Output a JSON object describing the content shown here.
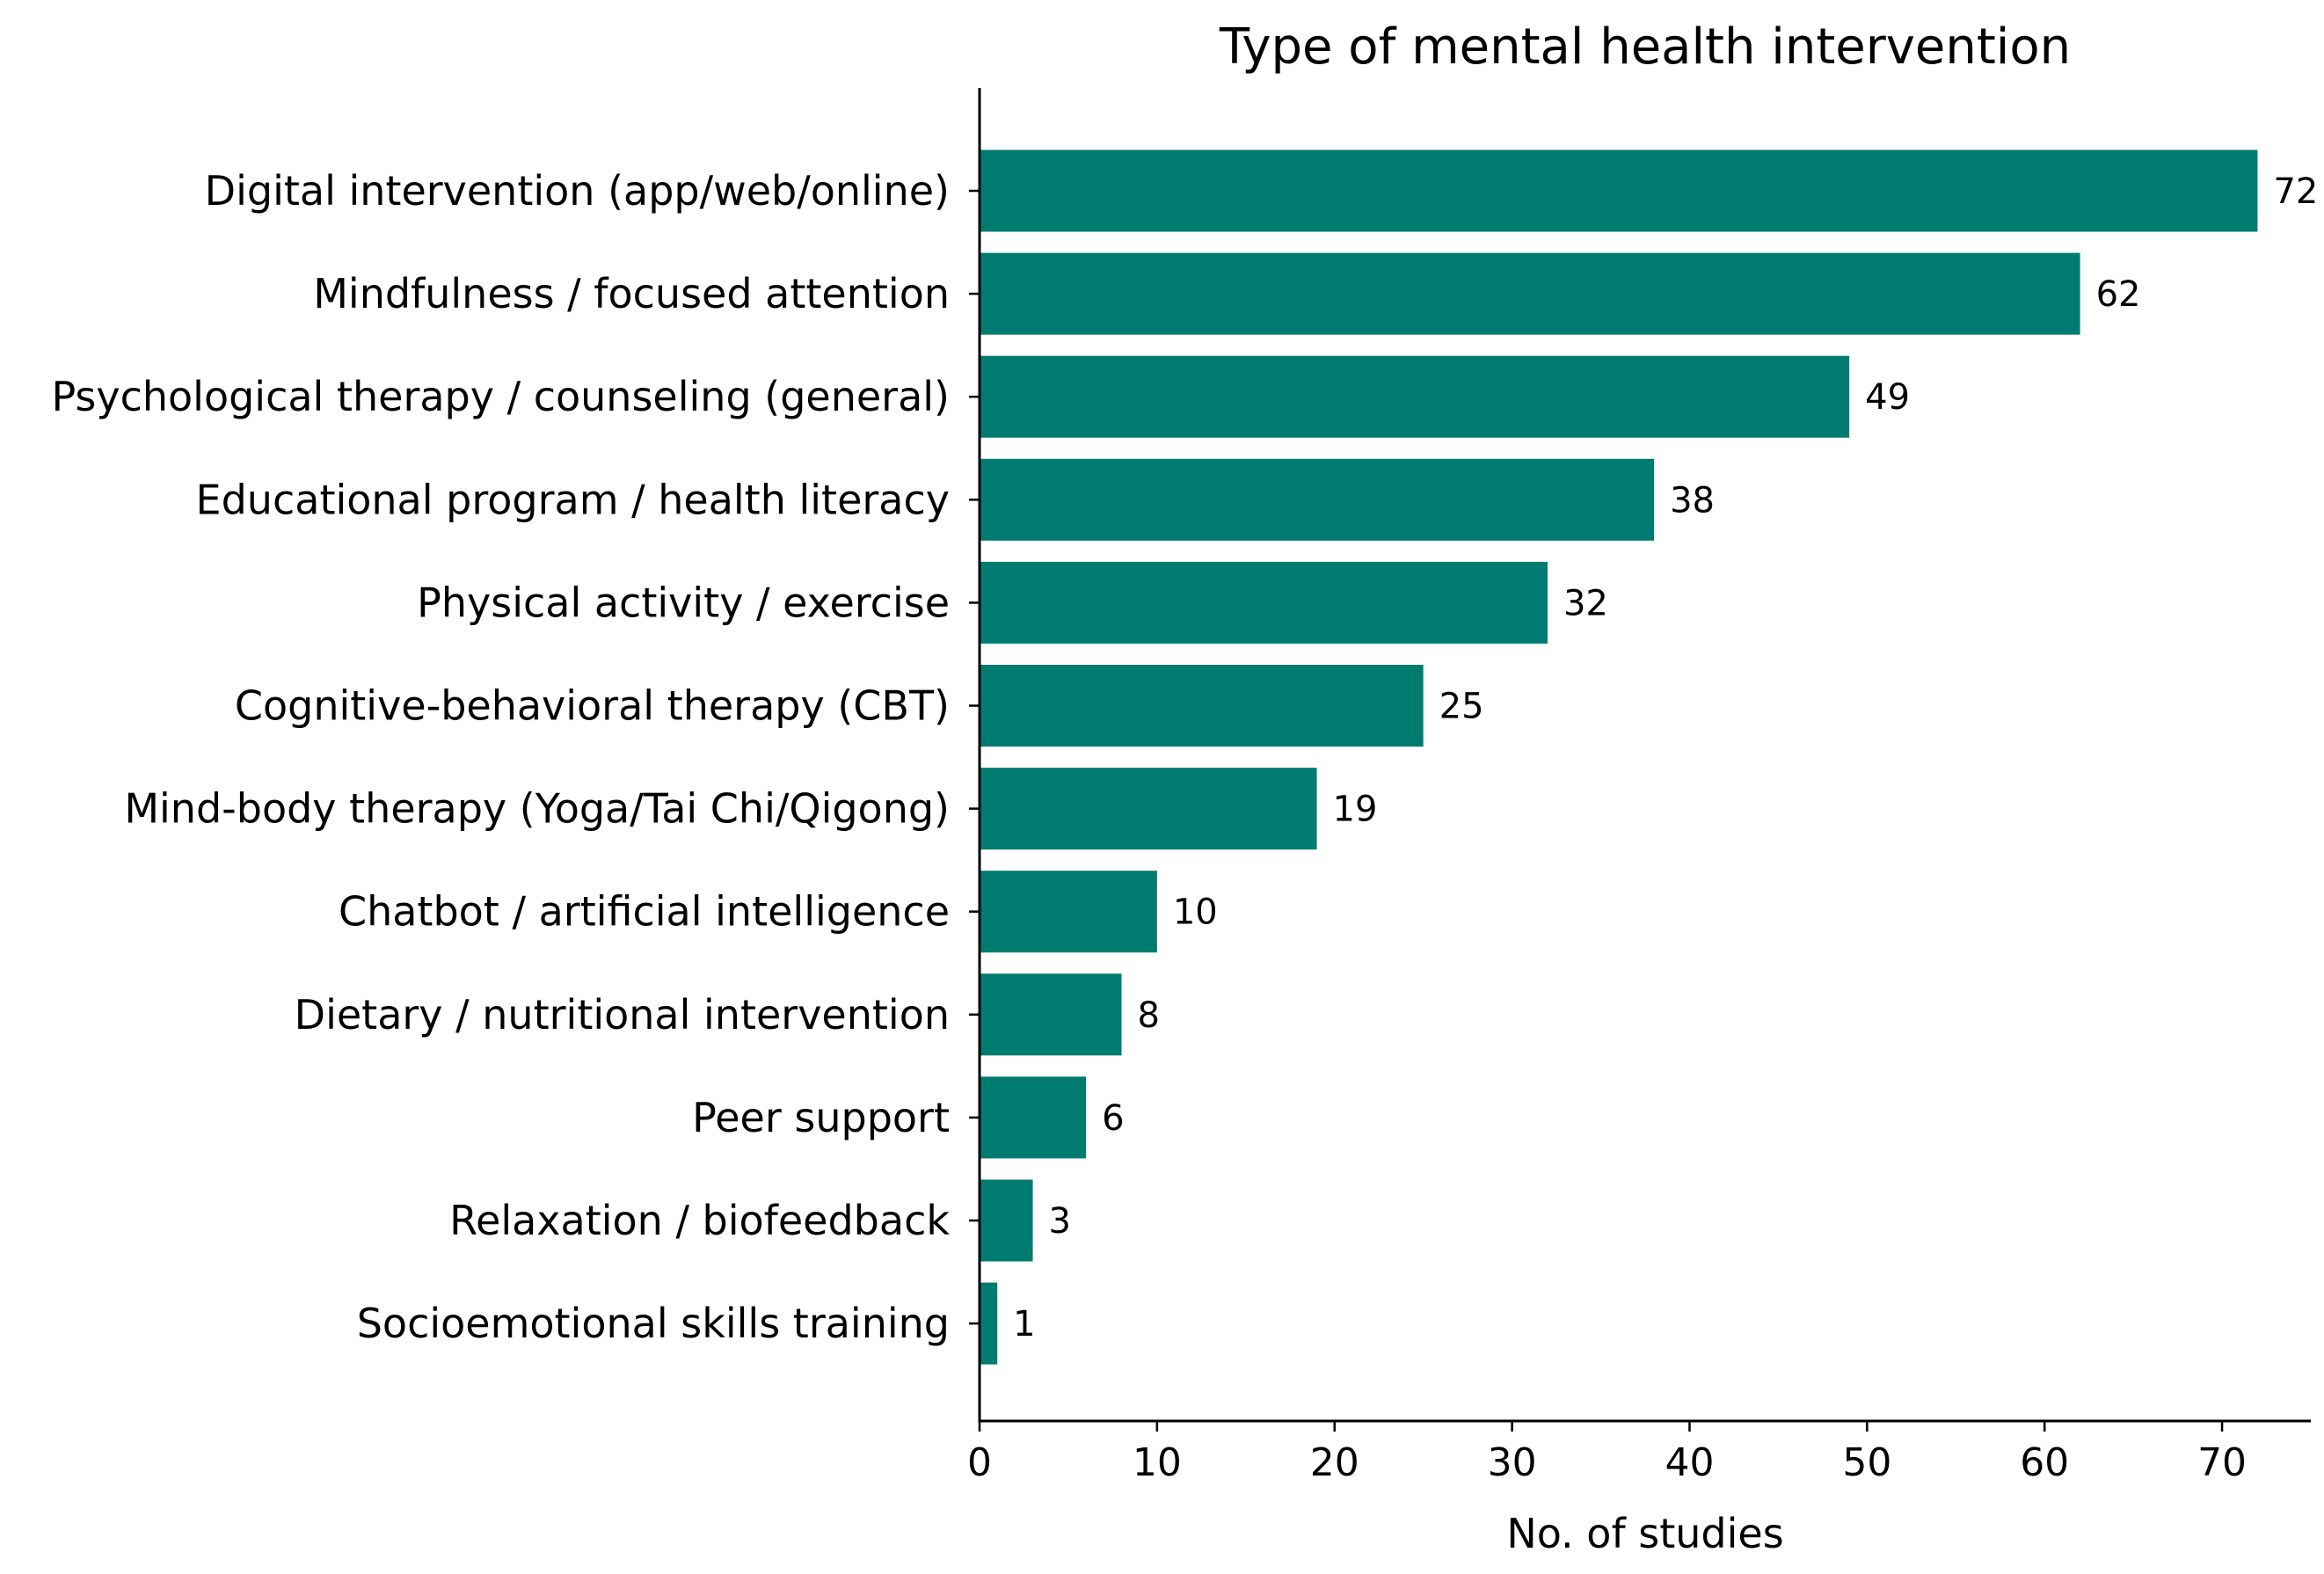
{
  "chart_data": {
    "type": "bar",
    "orientation": "horizontal",
    "title": "Type of mental health intervention",
    "xlabel": "No. of studies",
    "ylabel": "",
    "xlim": [
      0,
      75
    ],
    "xticks": [
      0,
      10,
      20,
      30,
      40,
      50,
      60,
      70
    ],
    "bar_color": "#007b70",
    "grid": false,
    "categories": [
      "Digital intervention (app/web/online)",
      "Mindfulness / focused attention",
      "Psychological therapy / counseling (general)",
      "Educational program / health literacy",
      "Physical activity / exercise",
      "Cognitive-behavioral therapy (CBT)",
      "Mind-body therapy (Yoga/Tai Chi/Qigong)",
      "Chatbot / artificial intelligence",
      "Dietary / nutritional intervention",
      "Peer support",
      "Relaxation / biofeedback",
      "Socioemotional skills training"
    ],
    "values": [
      72,
      62,
      49,
      38,
      32,
      25,
      19,
      10,
      8,
      6,
      3,
      1
    ]
  }
}
